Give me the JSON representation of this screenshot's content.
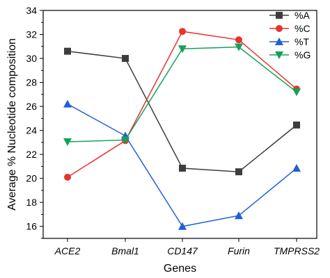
{
  "chart_data": {
    "type": "line",
    "categories": [
      "ACE2",
      "Bmal1",
      "CD147",
      "Furin",
      "TMPRSS2"
    ],
    "xlabel": "Genes",
    "ylabel": "Average % Nucleotide composition",
    "ylim": [
      15,
      34
    ],
    "yticks": [
      16,
      18,
      20,
      22,
      24,
      26,
      28,
      30,
      32,
      34
    ],
    "grid": false,
    "legend_position": "top-right",
    "series": [
      {
        "name": "%A",
        "color": "#3d3d3d",
        "marker": "square",
        "values": [
          30.6,
          30.0,
          20.85,
          20.55,
          24.45
        ]
      },
      {
        "name": "%C",
        "color": "#e8322d",
        "marker": "circle",
        "values": [
          20.1,
          23.15,
          32.25,
          31.55,
          27.45
        ]
      },
      {
        "name": "%T",
        "color": "#1f5fd6",
        "marker": "triangle-up",
        "values": [
          26.2,
          23.55,
          16.0,
          16.9,
          20.85
        ]
      },
      {
        "name": "%G",
        "color": "#16a05a",
        "marker": "triangle-down",
        "values": [
          23.05,
          23.2,
          30.8,
          30.95,
          27.2
        ]
      }
    ]
  }
}
